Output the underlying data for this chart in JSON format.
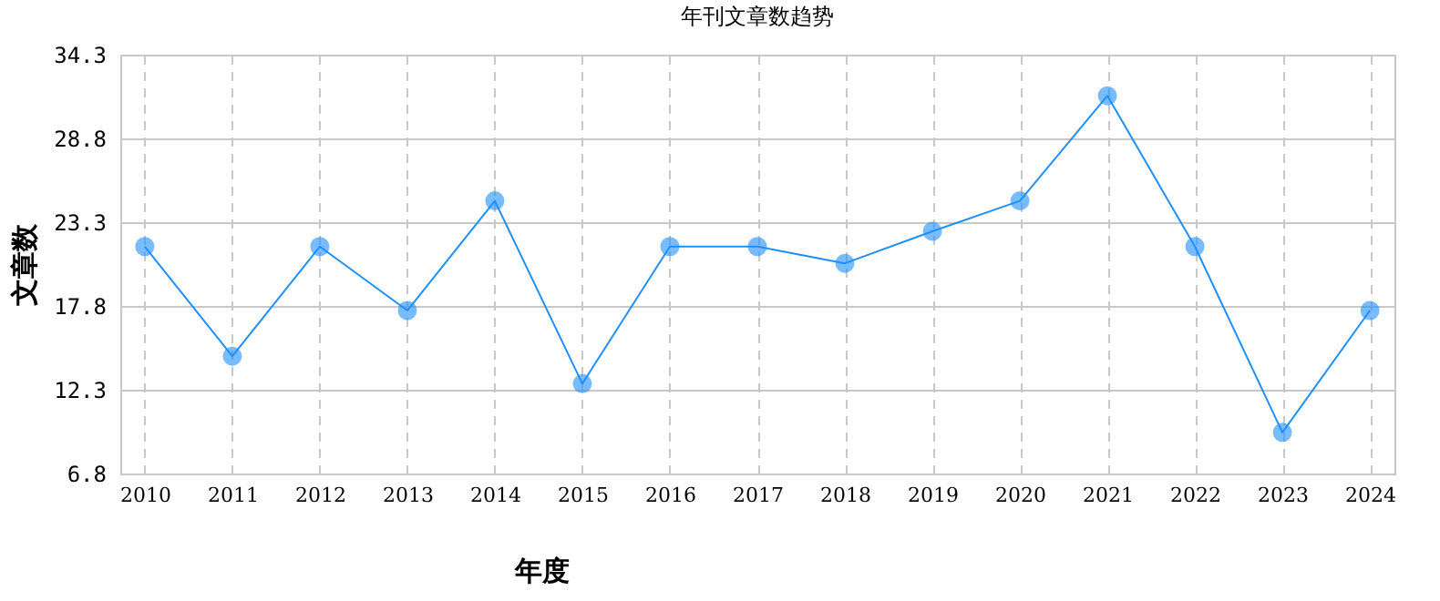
{
  "chart_data": {
    "type": "line",
    "title": "年刊文章数趋势",
    "xlabel": "年度",
    "ylabel": "文章数",
    "categories": [
      "2010",
      "2011",
      "2012",
      "2013",
      "2014",
      "2015",
      "2016",
      "2017",
      "2018",
      "2019",
      "2020",
      "2021",
      "2022",
      "2023",
      "2024"
    ],
    "series": [
      {
        "color": "#1e90ff",
        "values": [
          21.7,
          14.5,
          21.7,
          17.5,
          24.7,
          12.7,
          21.7,
          21.7,
          20.6,
          22.7,
          24.7,
          31.6,
          21.7,
          9.5,
          17.5
        ]
      }
    ],
    "ylim": [
      6.8,
      34.3
    ],
    "yticks": [
      6.8,
      12.3,
      17.8,
      23.3,
      28.8,
      34.3
    ],
    "grid": true,
    "marker": "circle",
    "line_style": "solid"
  }
}
